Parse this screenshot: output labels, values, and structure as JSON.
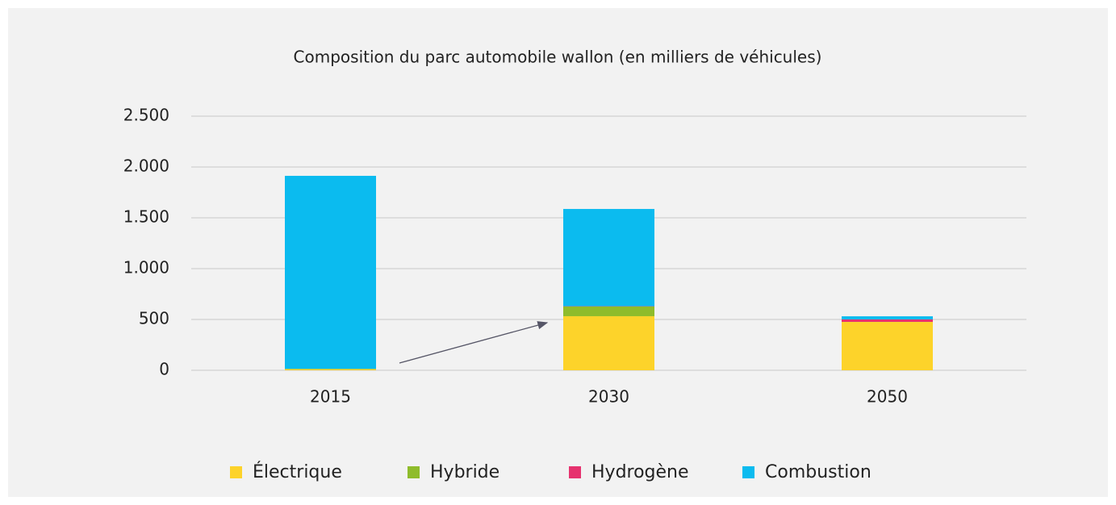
{
  "chart_data": {
    "type": "stacked_bar",
    "title": "Composition du parc automobile wallon (en milliers de véhicules)",
    "categories": [
      "2015",
      "2030",
      "2050"
    ],
    "series": [
      {
        "name": "Électrique",
        "color": "#fdd32a",
        "values": [
          10,
          532,
          476
        ]
      },
      {
        "name": "Hybride",
        "color": "#8fbc2b",
        "values": [
          5,
          95,
          0
        ]
      },
      {
        "name": "Hydrogène",
        "color": "#e6336f",
        "values": [
          0,
          3,
          25
        ]
      },
      {
        "name": "Combustion",
        "color": "#0bbbef",
        "values": [
          1898,
          957,
          30
        ]
      }
    ],
    "ylim": [
      0,
      2500
    ],
    "yticks": [
      0,
      500,
      {
        "value": 1000,
        "label": "1.000"
      },
      {
        "value": 1500,
        "label": "1.500"
      },
      {
        "value": 2000,
        "label": "2.000"
      },
      {
        "value": 2500,
        "label": "2.500"
      }
    ],
    "grid": true,
    "legend": "bottom"
  }
}
